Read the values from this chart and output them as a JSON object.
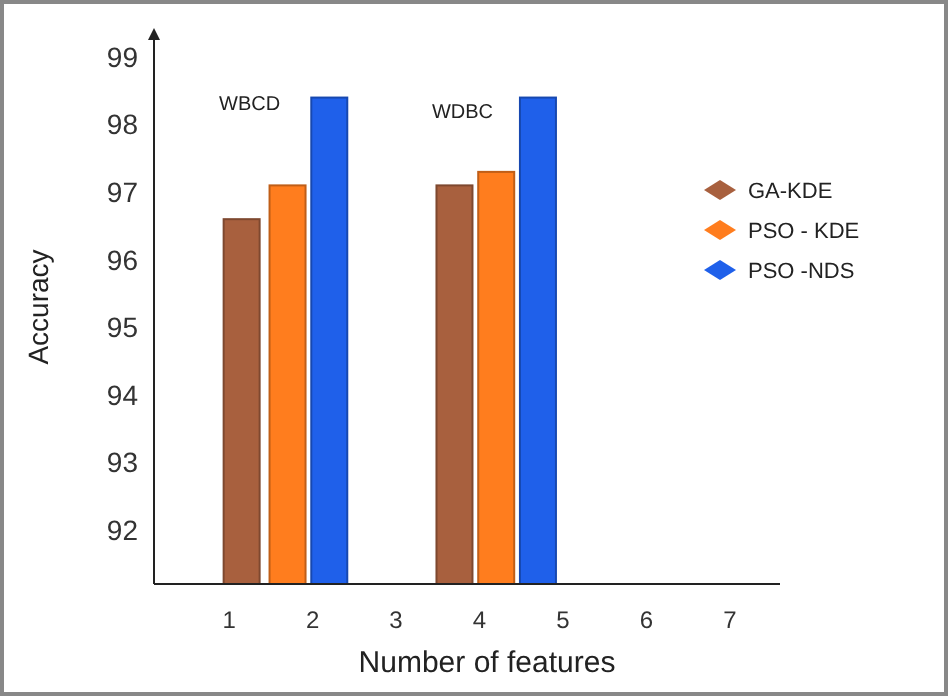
{
  "chart_data": {
    "type": "bar",
    "xlabel": "Number of features",
    "ylabel": "Accuracy",
    "xlim": [
      0.1,
      7.6
    ],
    "xticks": [
      1,
      2,
      3,
      4,
      5,
      6,
      7
    ],
    "ylim": [
      91.2,
      99.4
    ],
    "yticks": [
      92,
      93,
      94,
      95,
      96,
      97,
      98,
      99
    ],
    "series": [
      {
        "name": "GA-KDE",
        "color": "#a8603e",
        "x": [
          1.15,
          3.7
        ],
        "values": [
          96.6,
          97.1
        ]
      },
      {
        "name": "PSO - KDE",
        "color": "#ff7d1e",
        "x": [
          1.7,
          4.2
        ],
        "values": [
          97.1,
          97.3
        ]
      },
      {
        "name": "PSO -NDS",
        "color": "#1f60ea",
        "x": [
          2.2,
          4.7
        ],
        "values": [
          98.4,
          98.4
        ]
      }
    ],
    "annotations": [
      "WBCD",
      "WDBC"
    ],
    "legend": "right",
    "grid": false
  }
}
